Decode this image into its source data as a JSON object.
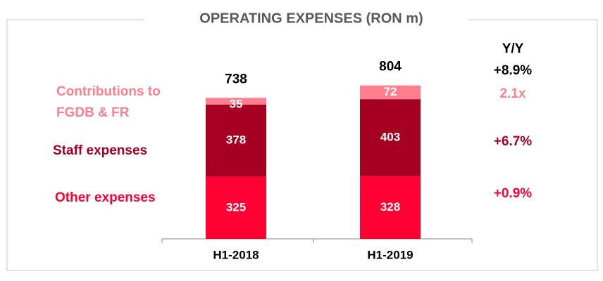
{
  "chart_data": {
    "type": "stacked_bar",
    "title": "OPERATING EXPENSES (RON m)",
    "categories": [
      "H1-2018",
      "H1-2019"
    ],
    "series": [
      {
        "name": "Other expenses",
        "color": "#ff0033",
        "values": [
          325,
          328
        ],
        "yoy": "+0.9%"
      },
      {
        "name": "Staff expenses",
        "color": "#a50021",
        "values": [
          378,
          403
        ],
        "yoy": "+6.7%"
      },
      {
        "name": "Contributions to FGDB & FR",
        "color": "#ff7f8f",
        "values": [
          35,
          72
        ],
        "yoy": "2.1x"
      }
    ],
    "totals": [
      738,
      804
    ],
    "yoy_header": "Y/Y",
    "yoy_total": "+8.9%",
    "ylim": [
      0,
      1000
    ]
  }
}
